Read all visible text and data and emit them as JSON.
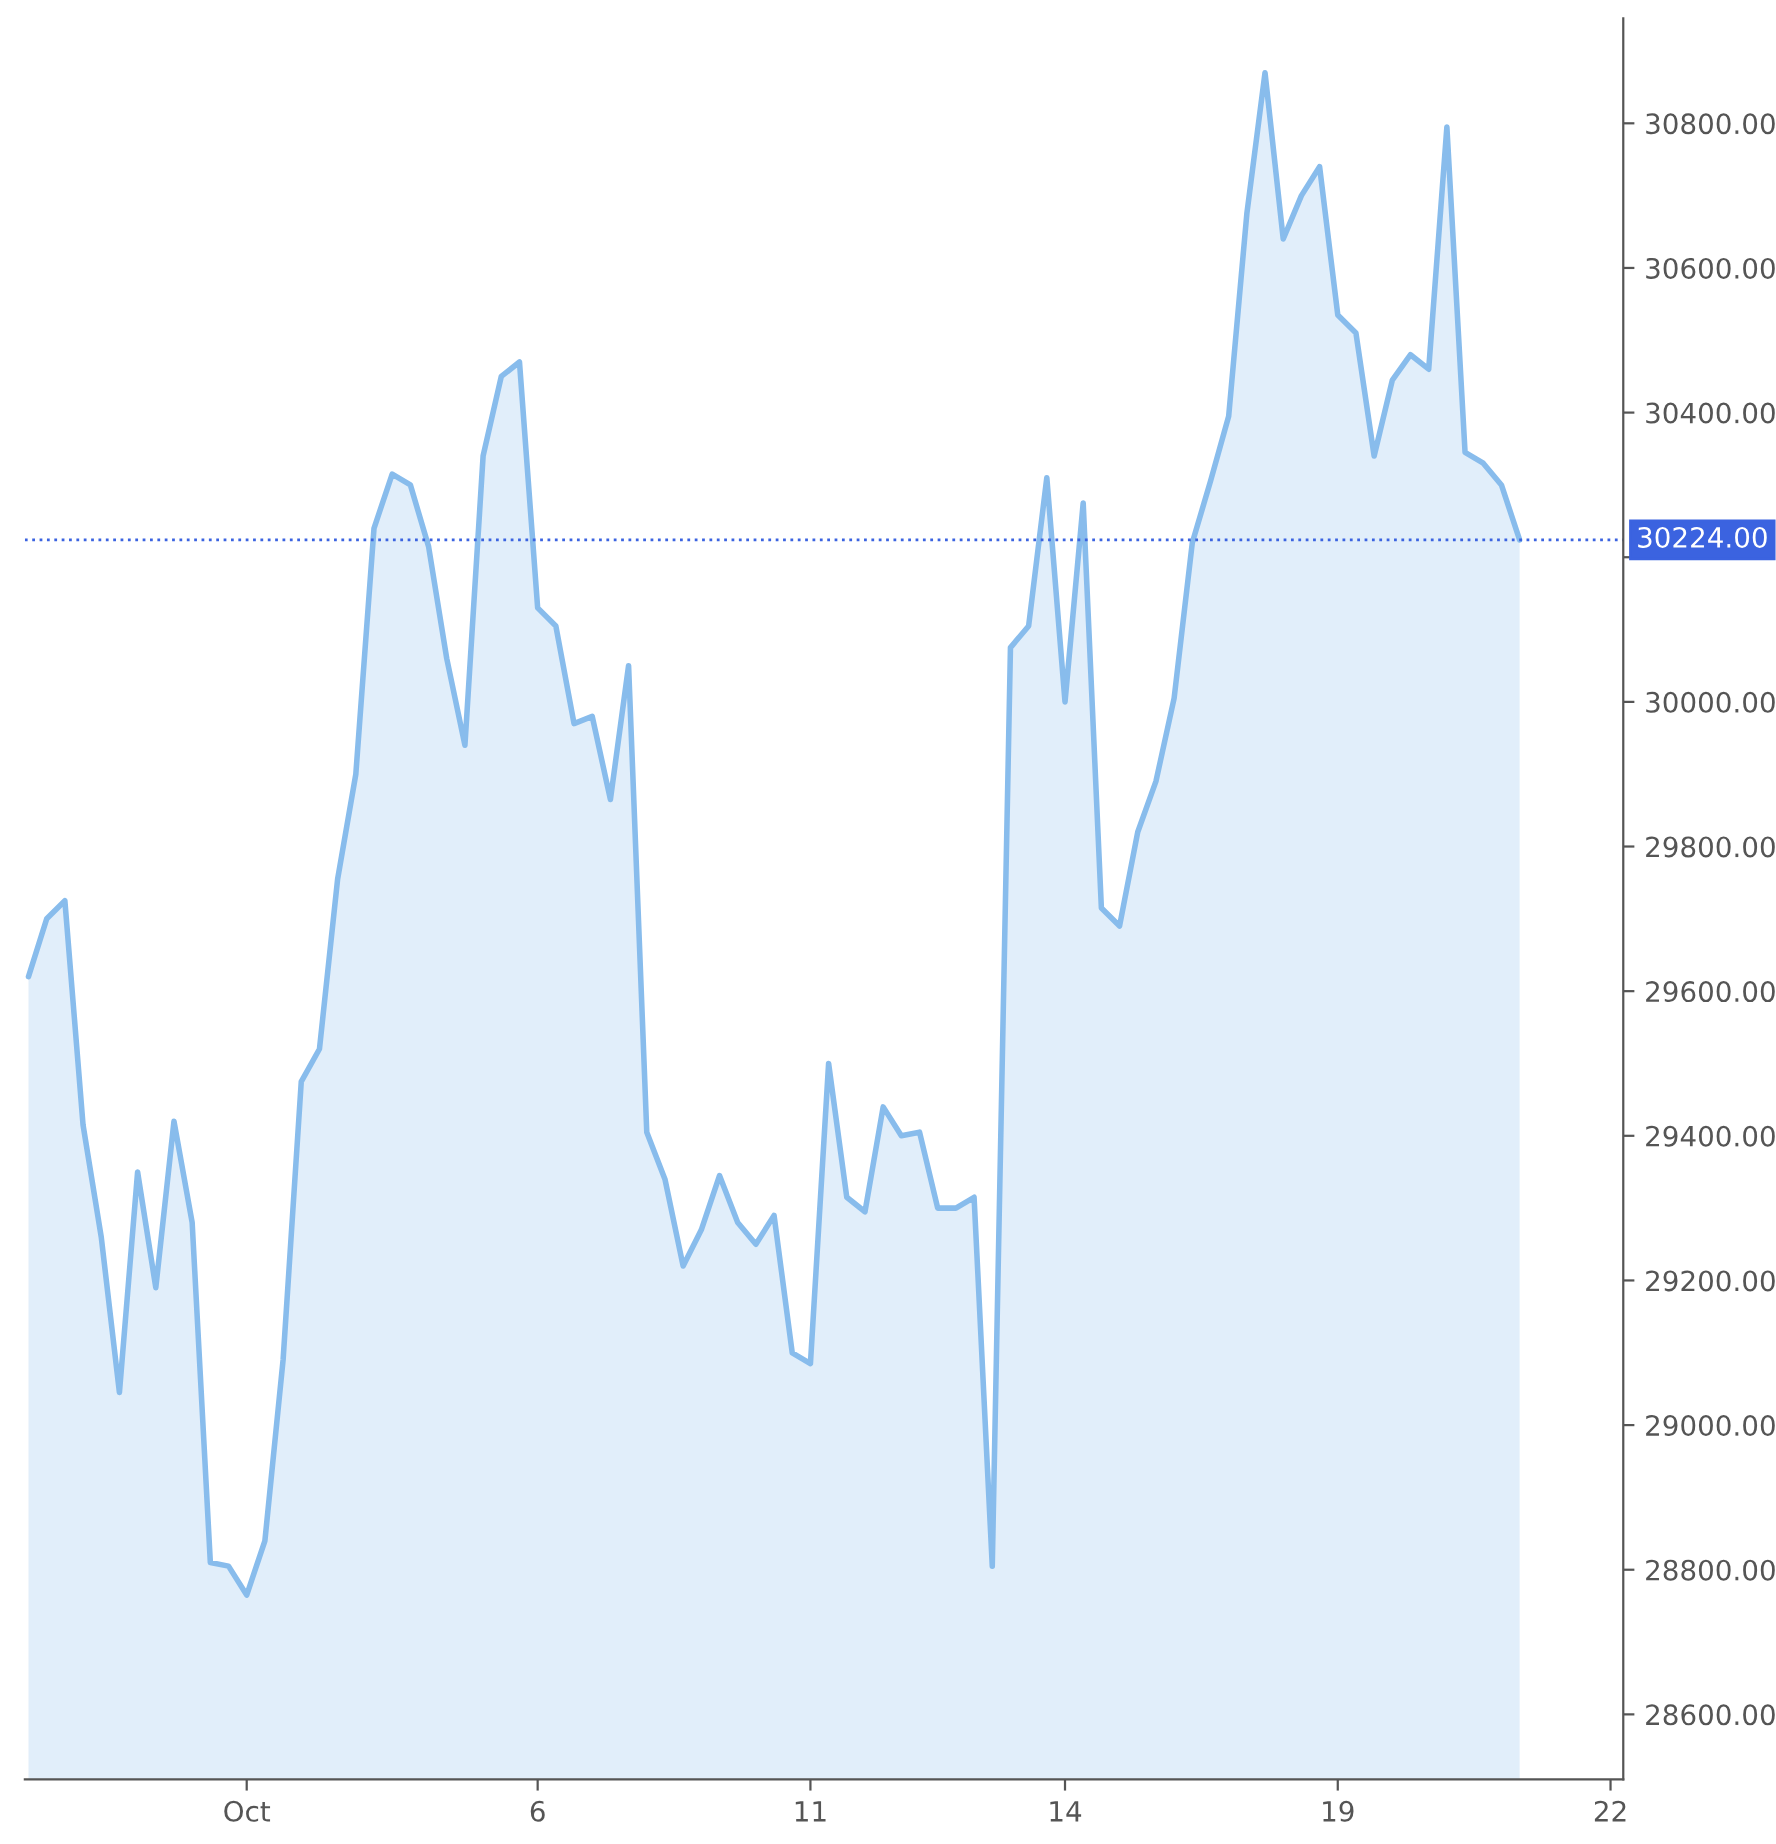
{
  "chart_data": {
    "type": "area",
    "categories": [
      null,
      null,
      null,
      null,
      null,
      null,
      null,
      null,
      null,
      null,
      null,
      null,
      "Oct",
      null,
      null,
      null,
      null,
      null,
      null,
      null,
      null,
      null,
      null,
      null,
      null,
      null,
      null,
      null,
      "6",
      null,
      null,
      null,
      null,
      null,
      null,
      null,
      null,
      null,
      null,
      null,
      null,
      null,
      null,
      "11",
      null,
      null,
      null,
      null,
      null,
      null,
      null,
      null,
      null,
      null,
      null,
      null,
      null,
      "14",
      null,
      null,
      null,
      null,
      null,
      null,
      null,
      null,
      null,
      null,
      null,
      null,
      null,
      null,
      "19",
      null,
      null,
      null,
      null,
      null,
      null,
      null,
      null,
      null,
      null,
      null,
      null,
      null,
      null,
      "22"
    ],
    "series": [
      {
        "color": "#88bcec",
        "values": [
          29620,
          29700,
          29725,
          29415,
          29260,
          29045,
          29350,
          29190,
          29420,
          29280,
          28810,
          28805,
          28765,
          28840,
          29090,
          29475,
          29520,
          29755,
          29900,
          30240,
          30315,
          30300,
          30215,
          30060,
          29940,
          30340,
          30450,
          30470,
          30130,
          30105,
          29970,
          29980,
          29865,
          30050,
          29405,
          29340,
          29220,
          29270,
          29345,
          29280,
          29250,
          29290,
          29100,
          29085,
          29500,
          29315,
          29295,
          29440,
          29400,
          29405,
          29300,
          29300,
          29315,
          28805,
          30075,
          30105,
          30310,
          30000,
          30275,
          29715,
          29690,
          29820,
          29890,
          30005,
          30220,
          30305,
          30395,
          30675,
          30870,
          30640,
          30700,
          30740,
          30535,
          30510,
          30340,
          30445,
          30480,
          30460,
          30795,
          30345,
          30330,
          30300,
          30224,
          null,
          null,
          null,
          null,
          null
        ]
      }
    ],
    "ylim": [
      28510,
      30945
    ],
    "yticks": [
      {
        "value": 28600,
        "label": "28600.00"
      },
      {
        "value": 28800,
        "label": "28800.00"
      },
      {
        "value": 29000,
        "label": "29000.00"
      },
      {
        "value": 29200,
        "label": "29200.00"
      },
      {
        "value": 29400,
        "label": "29400.00"
      },
      {
        "value": 29600,
        "label": "29600.00"
      },
      {
        "value": 29800,
        "label": "29800.00"
      },
      {
        "value": 30000,
        "label": "30000.00"
      },
      {
        "value": 30200,
        "label": null
      },
      {
        "value": 30400,
        "label": "30400.00"
      },
      {
        "value": 30600,
        "label": "30600.00"
      },
      {
        "value": 30800,
        "label": "30800.00"
      }
    ],
    "ref_lines": [
      {
        "axis": "y",
        "value": 30224,
        "label": "30224.00",
        "color": "#3b63e0",
        "line_style": "dotted"
      }
    ],
    "grid": false,
    "legend": false
  }
}
